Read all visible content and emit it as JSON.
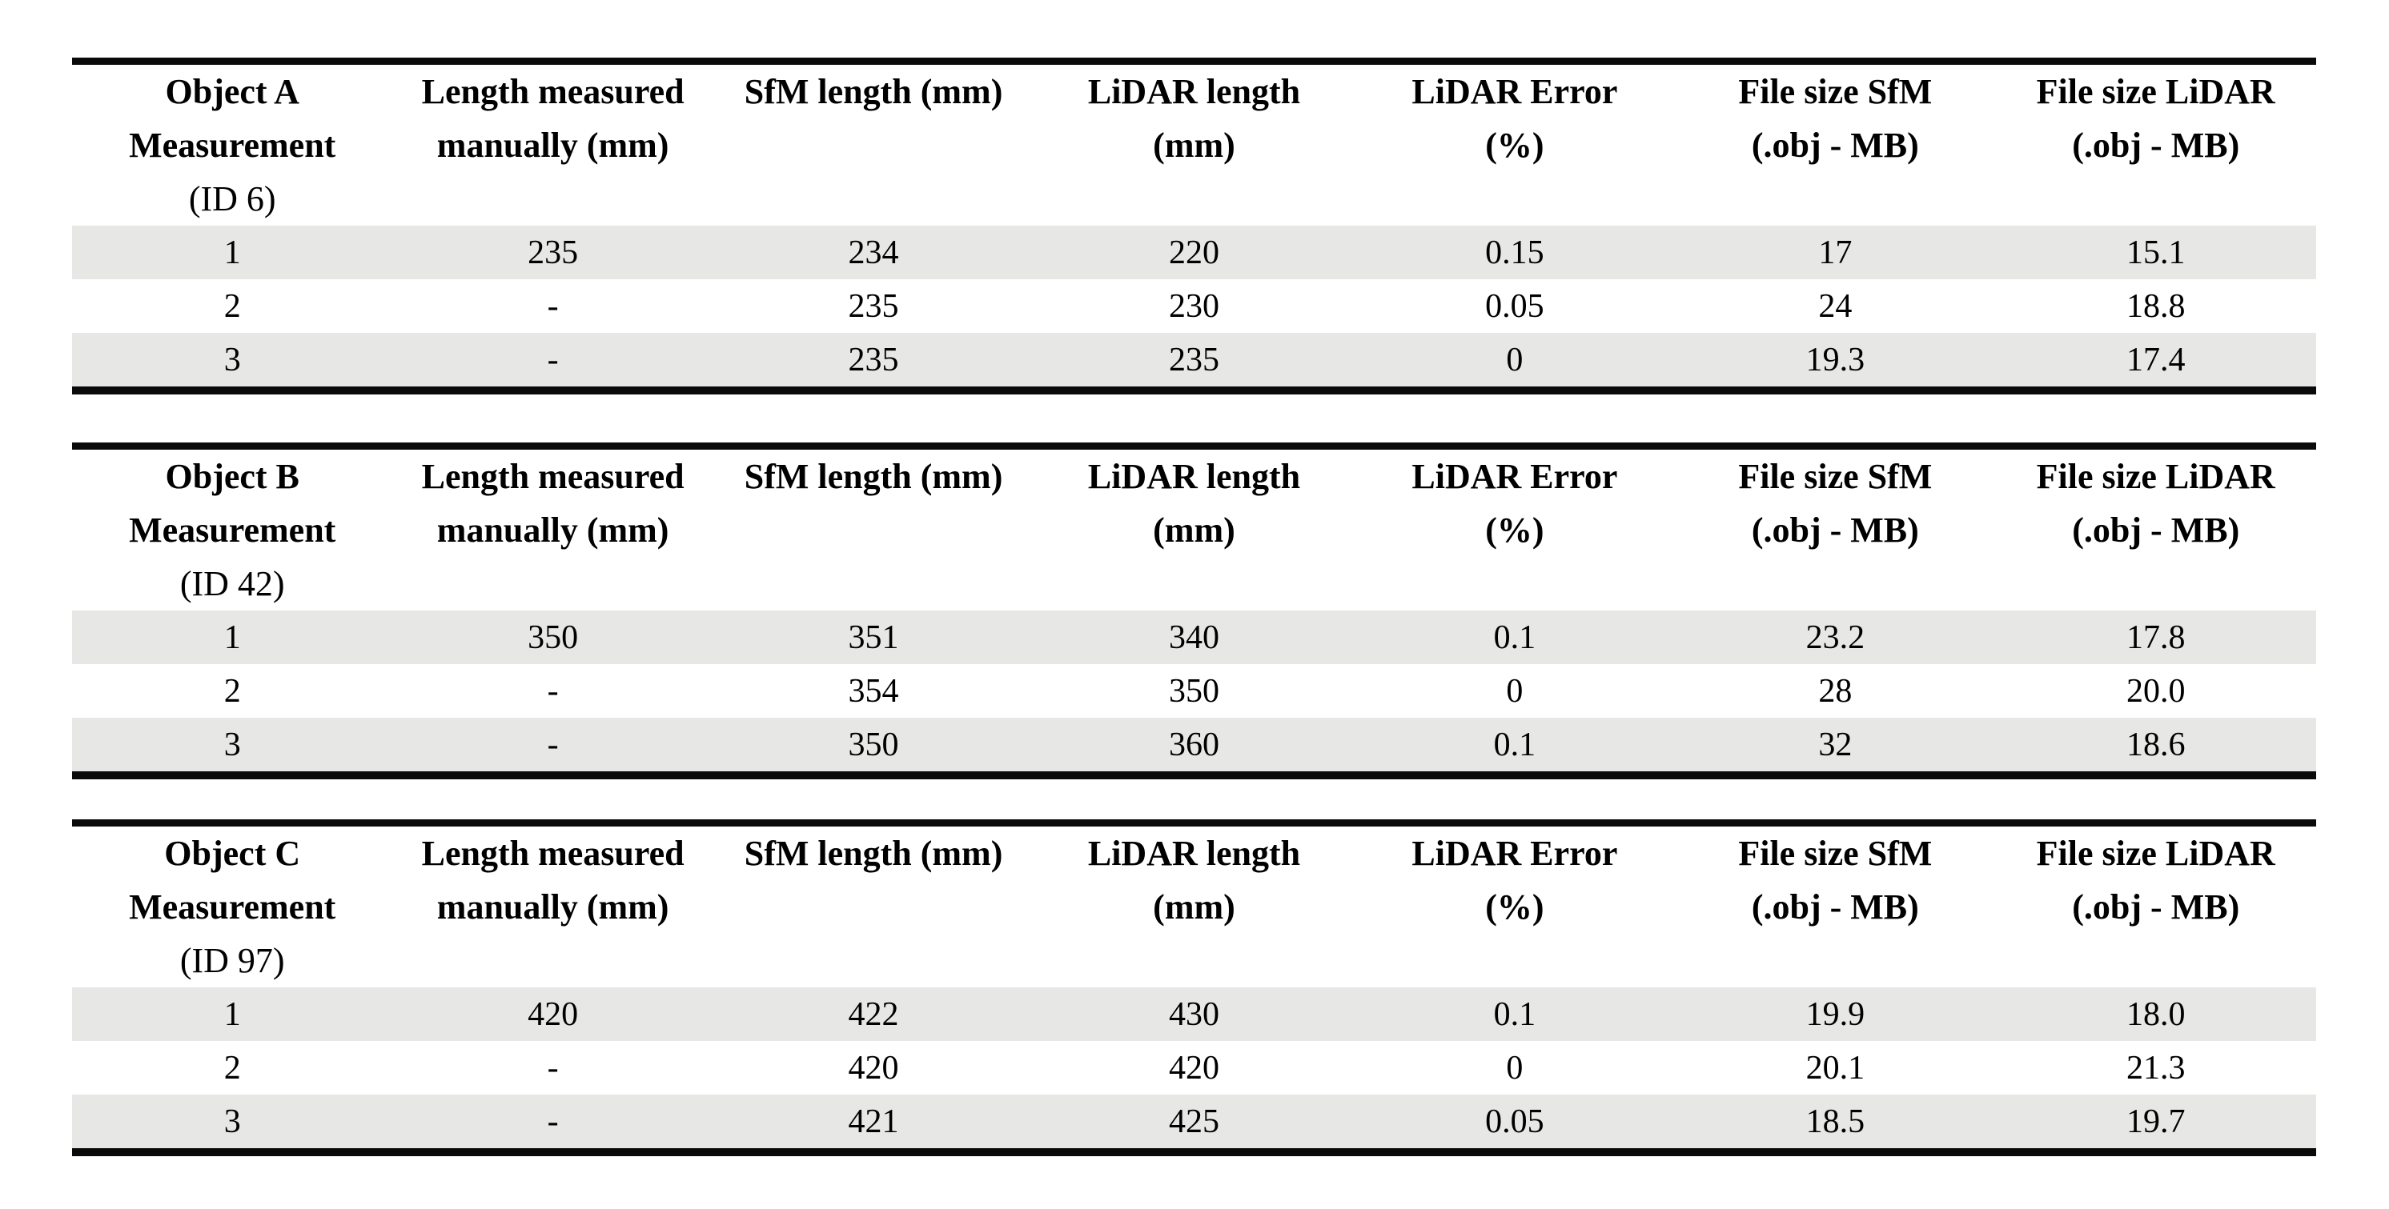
{
  "page": {
    "background_color": "#ffffff",
    "text_color": "#000000",
    "row_shade_color": "#e7e7e6",
    "rule_color": "#0a0a0a"
  },
  "column_headers": [
    {
      "name": "length-measured-manually",
      "lines": [
        "Length measured",
        "manually (mm)"
      ]
    },
    {
      "name": "sfm-length",
      "lines": [
        "SfM length (mm)"
      ]
    },
    {
      "name": "lidar-length",
      "lines": [
        "LiDAR length",
        "(mm)"
      ]
    },
    {
      "name": "lidar-error",
      "lines": [
        "LiDAR Error",
        "(%)"
      ]
    },
    {
      "name": "file-size-sfm",
      "lines": [
        "File size SfM",
        "(.obj - MB)"
      ]
    },
    {
      "name": "file-size-lidar",
      "lines": [
        "File size LiDAR",
        "(.obj - MB)"
      ]
    }
  ],
  "tables": [
    {
      "object": "A",
      "title_lines": [
        "Object A",
        "Measurement",
        "(ID 6)"
      ],
      "rows": [
        {
          "shaded": true,
          "cells": [
            "1",
            "235",
            "234",
            "220",
            "0.15",
            "17",
            "15.1"
          ]
        },
        {
          "shaded": false,
          "cells": [
            "2",
            "-",
            "235",
            "230",
            "0.05",
            "24",
            "18.8"
          ]
        },
        {
          "shaded": true,
          "cells": [
            "3",
            "-",
            "235",
            "235",
            "0",
            "19.3",
            "17.4"
          ]
        }
      ]
    },
    {
      "object": "B",
      "title_lines": [
        "Object B",
        "Measurement",
        "(ID 42)"
      ],
      "rows": [
        {
          "shaded": true,
          "cells": [
            "1",
            "350",
            "351",
            "340",
            "0.1",
            "23.2",
            "17.8"
          ]
        },
        {
          "shaded": false,
          "cells": [
            "2",
            "-",
            "354",
            "350",
            "0",
            "28",
            "20.0"
          ]
        },
        {
          "shaded": true,
          "cells": [
            "3",
            "-",
            "350",
            "360",
            "0.1",
            "32",
            "18.6"
          ]
        }
      ]
    },
    {
      "object": "C",
      "title_lines": [
        "Object C",
        "Measurement",
        "(ID 97)"
      ],
      "rows": [
        {
          "shaded": true,
          "cells": [
            "1",
            "420",
            "422",
            "430",
            "0.1",
            "19.9",
            "18.0"
          ]
        },
        {
          "shaded": false,
          "cells": [
            "2",
            "-",
            "420",
            "420",
            "0",
            "20.1",
            "21.3"
          ]
        },
        {
          "shaded": true,
          "cells": [
            "3",
            "-",
            "421",
            "425",
            "0.05",
            "18.5",
            "19.7"
          ]
        }
      ]
    }
  ]
}
